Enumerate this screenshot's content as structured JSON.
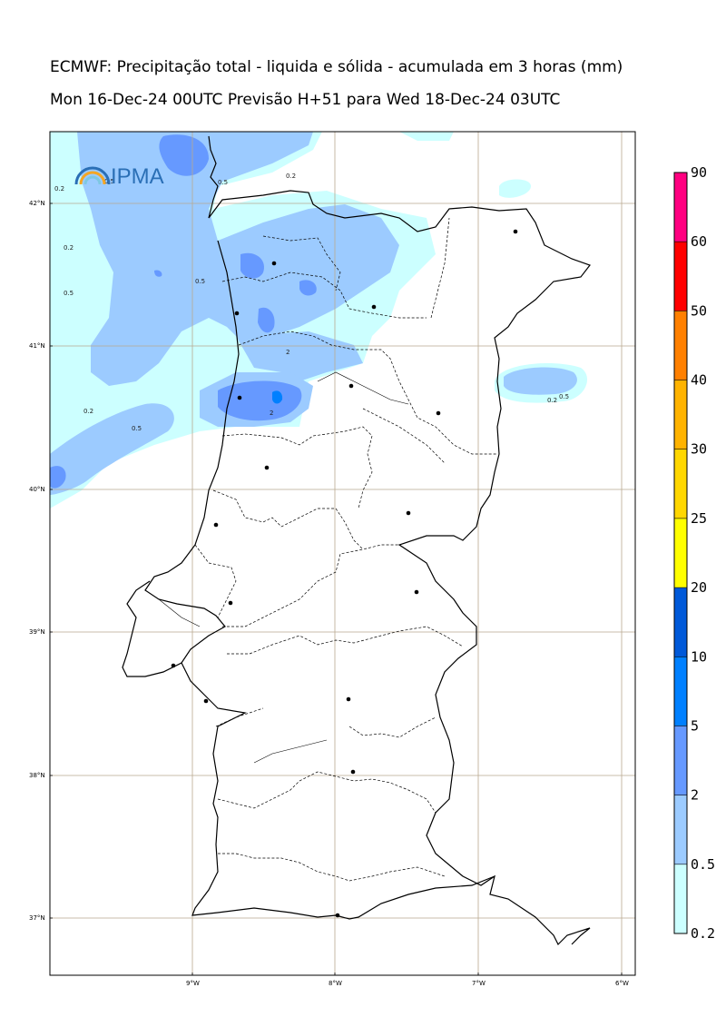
{
  "title_line1": "ECMWF: Precipitação total - liquida e sólida - acumulada em 3 horas (mm)",
  "title_line2": "Mon 16-Dec-24 00UTC Previsão H+51 para Wed 18-Dec-24 03UTC",
  "logo": {
    "text": "IPMA",
    "icon": "rainbow-logo-icon"
  },
  "latitude_labels": [
    "42°N",
    "41°N",
    "40°N",
    "39°N",
    "38°N",
    "37°N"
  ],
  "longitude_labels": [
    "9°W",
    "8°W",
    "7°W",
    "6°W"
  ],
  "colorbar": {
    "levels": [
      "0.2",
      "0.5",
      "2",
      "5",
      "10",
      "20",
      "25",
      "30",
      "40",
      "50",
      "60",
      "90"
    ],
    "colors": [
      "#ccffff",
      "#9ccbff",
      "#6699ff",
      "#0080ff",
      "#0059d9",
      "#ffff00",
      "#ffd700",
      "#ffb300",
      "#ff8000",
      "#ff0000",
      "#ff0080"
    ]
  },
  "contour_labels": [
    "0.2",
    "0.5",
    "2"
  ],
  "precip_colors": {
    "light": "#ccffff",
    "medium": "#9ccbff",
    "heavy": "#6699ff",
    "peak": "#0080ff"
  }
}
